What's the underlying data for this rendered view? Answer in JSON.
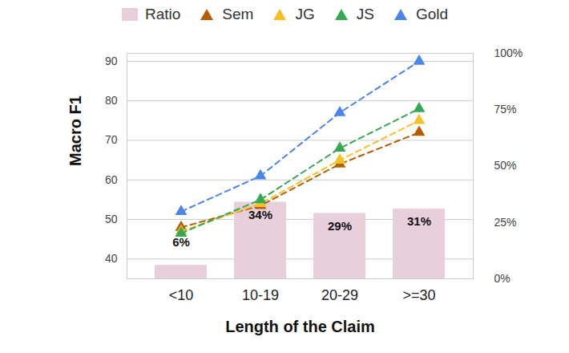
{
  "chart_data": {
    "type": "line",
    "x_label": "Length of the Claim",
    "y_label": "Macro F1",
    "categories": [
      "<10",
      "10-19",
      "20-29",
      ">=30"
    ],
    "series": [
      {
        "name": "Ratio",
        "type": "bar",
        "axis": "y2",
        "color": "#e8cfdc",
        "values": [
          6,
          34,
          29,
          31
        ],
        "value_labels": [
          "6%",
          "34%",
          "29%",
          "31%"
        ]
      },
      {
        "name": "Sem",
        "type": "line",
        "color": "#b45f06",
        "marker": "triangle",
        "line_style": "dashed",
        "values": [
          48,
          53.5,
          64,
          72
        ]
      },
      {
        "name": "JG",
        "type": "line",
        "color": "#f6c026",
        "marker": "triangle",
        "line_style": "dashed",
        "values": [
          47,
          54,
          65,
          75
        ]
      },
      {
        "name": "JS",
        "type": "line",
        "color": "#34a853",
        "marker": "triangle",
        "line_style": "dashed",
        "values": [
          46.5,
          55,
          68,
          78
        ]
      },
      {
        "name": "Gold",
        "type": "line",
        "color": "#4a86e8",
        "marker": "triangle",
        "line_style": "dashed",
        "values": [
          52,
          61,
          77,
          90
        ]
      }
    ],
    "ylim": [
      35,
      92
    ],
    "yticks": [
      40,
      50,
      60,
      70,
      80,
      90
    ],
    "y2lim": [
      0,
      100
    ],
    "y2ticks": [
      {
        "value": 0,
        "label": "0%"
      },
      {
        "value": 25,
        "label": "25%"
      },
      {
        "value": 50,
        "label": "50%"
      },
      {
        "value": 75,
        "label": "75%"
      },
      {
        "value": 100,
        "label": "100%"
      }
    ],
    "grid": true,
    "legend": "top",
    "data_labels": true
  }
}
